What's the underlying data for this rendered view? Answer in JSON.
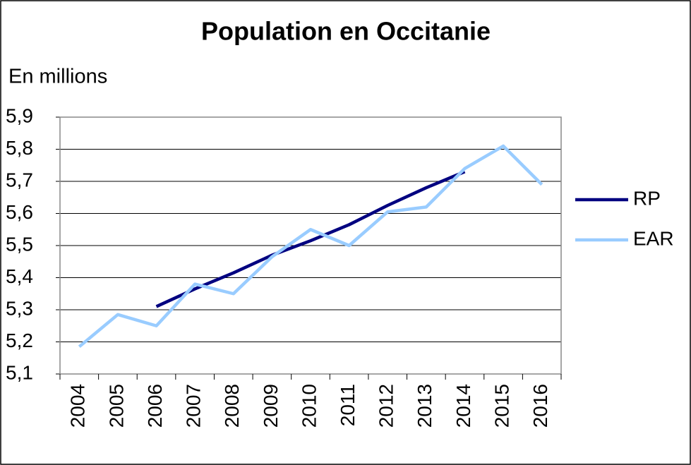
{
  "chart_data": {
    "type": "line",
    "title": "Population en Occitanie",
    "subtitle": "En millions",
    "categories": [
      "2004",
      "2005",
      "2006",
      "2007",
      "2008",
      "2009",
      "2010",
      "2011",
      "2012",
      "2013",
      "2014",
      "2015",
      "2016"
    ],
    "series": [
      {
        "name": "RP",
        "color": "#000080",
        "values": [
          null,
          null,
          5.31,
          5.365,
          5.415,
          5.47,
          5.515,
          5.565,
          5.625,
          5.68,
          5.73,
          null,
          null
        ]
      },
      {
        "name": "EAR",
        "color": "#99ccff",
        "values": [
          5.185,
          5.285,
          5.25,
          5.38,
          5.35,
          5.465,
          5.55,
          5.5,
          5.605,
          5.62,
          5.74,
          5.81,
          5.69
        ]
      }
    ],
    "ylim": [
      5.1,
      5.9
    ],
    "yticks": [
      {
        "value": 5.1,
        "label": "5,1"
      },
      {
        "value": 5.2,
        "label": "5,2"
      },
      {
        "value": 5.3,
        "label": "5,3"
      },
      {
        "value": 5.4,
        "label": "5,4"
      },
      {
        "value": 5.5,
        "label": "5,5"
      },
      {
        "value": 5.6,
        "label": "5,6"
      },
      {
        "value": 5.7,
        "label": "5,7"
      },
      {
        "value": 5.8,
        "label": "5,8"
      },
      {
        "value": 5.9,
        "label": "5,9"
      }
    ],
    "grid": true,
    "legend": "right"
  }
}
